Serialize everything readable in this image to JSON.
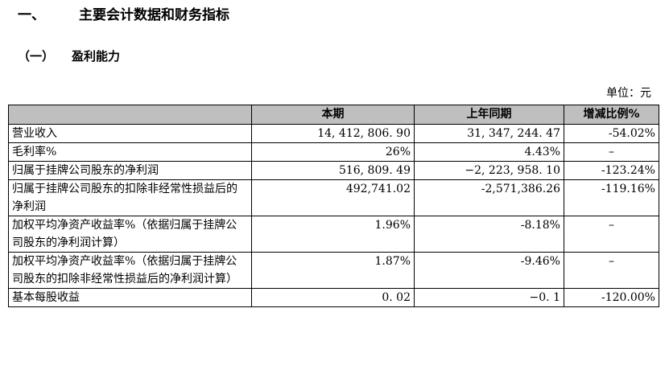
{
  "section": {
    "number": "一、",
    "title": "主要会计数据和财务指标"
  },
  "subsection": {
    "number": "（一）",
    "title": "盈利能力"
  },
  "unit_label": "单位：元",
  "table": {
    "headers": [
      "",
      "本期",
      "上年同期",
      "增减比例%"
    ],
    "rows": [
      {
        "label": "营业收入",
        "current": "14, 412, 806. 90",
        "prior": "31, 347, 244. 47",
        "change": "-54.02%"
      },
      {
        "label": "毛利率%",
        "current": "26%",
        "prior": "4.43%",
        "change": "–"
      },
      {
        "label": "归属于挂牌公司股东的净利润",
        "current": "516, 809. 49",
        "prior": "−2, 223, 958. 10",
        "change": "-123.24%"
      },
      {
        "label": "归属于挂牌公司股东的扣除非经常性损益后的净利润",
        "current": "492,741.02",
        "prior": "-2,571,386.26",
        "change": "-119.16%"
      },
      {
        "label": "加权平均净资产收益率%（依据归属于挂牌公司股东的净利润计算）",
        "current": "1.96%",
        "prior": "-8.18%",
        "change": "–"
      },
      {
        "label": "加权平均净资产收益率%（依据归属于挂牌公司股东的扣除非经常性损益后的净利润计算）",
        "current": "1.87%",
        "prior": "-9.46%",
        "change": "–"
      },
      {
        "label": "基本每股收益",
        "current": "0. 02",
        "prior": "−0. 1",
        "change": "-120.00%"
      }
    ]
  },
  "colors": {
    "header_bg": "#bfbfbf",
    "border": "#000000"
  }
}
